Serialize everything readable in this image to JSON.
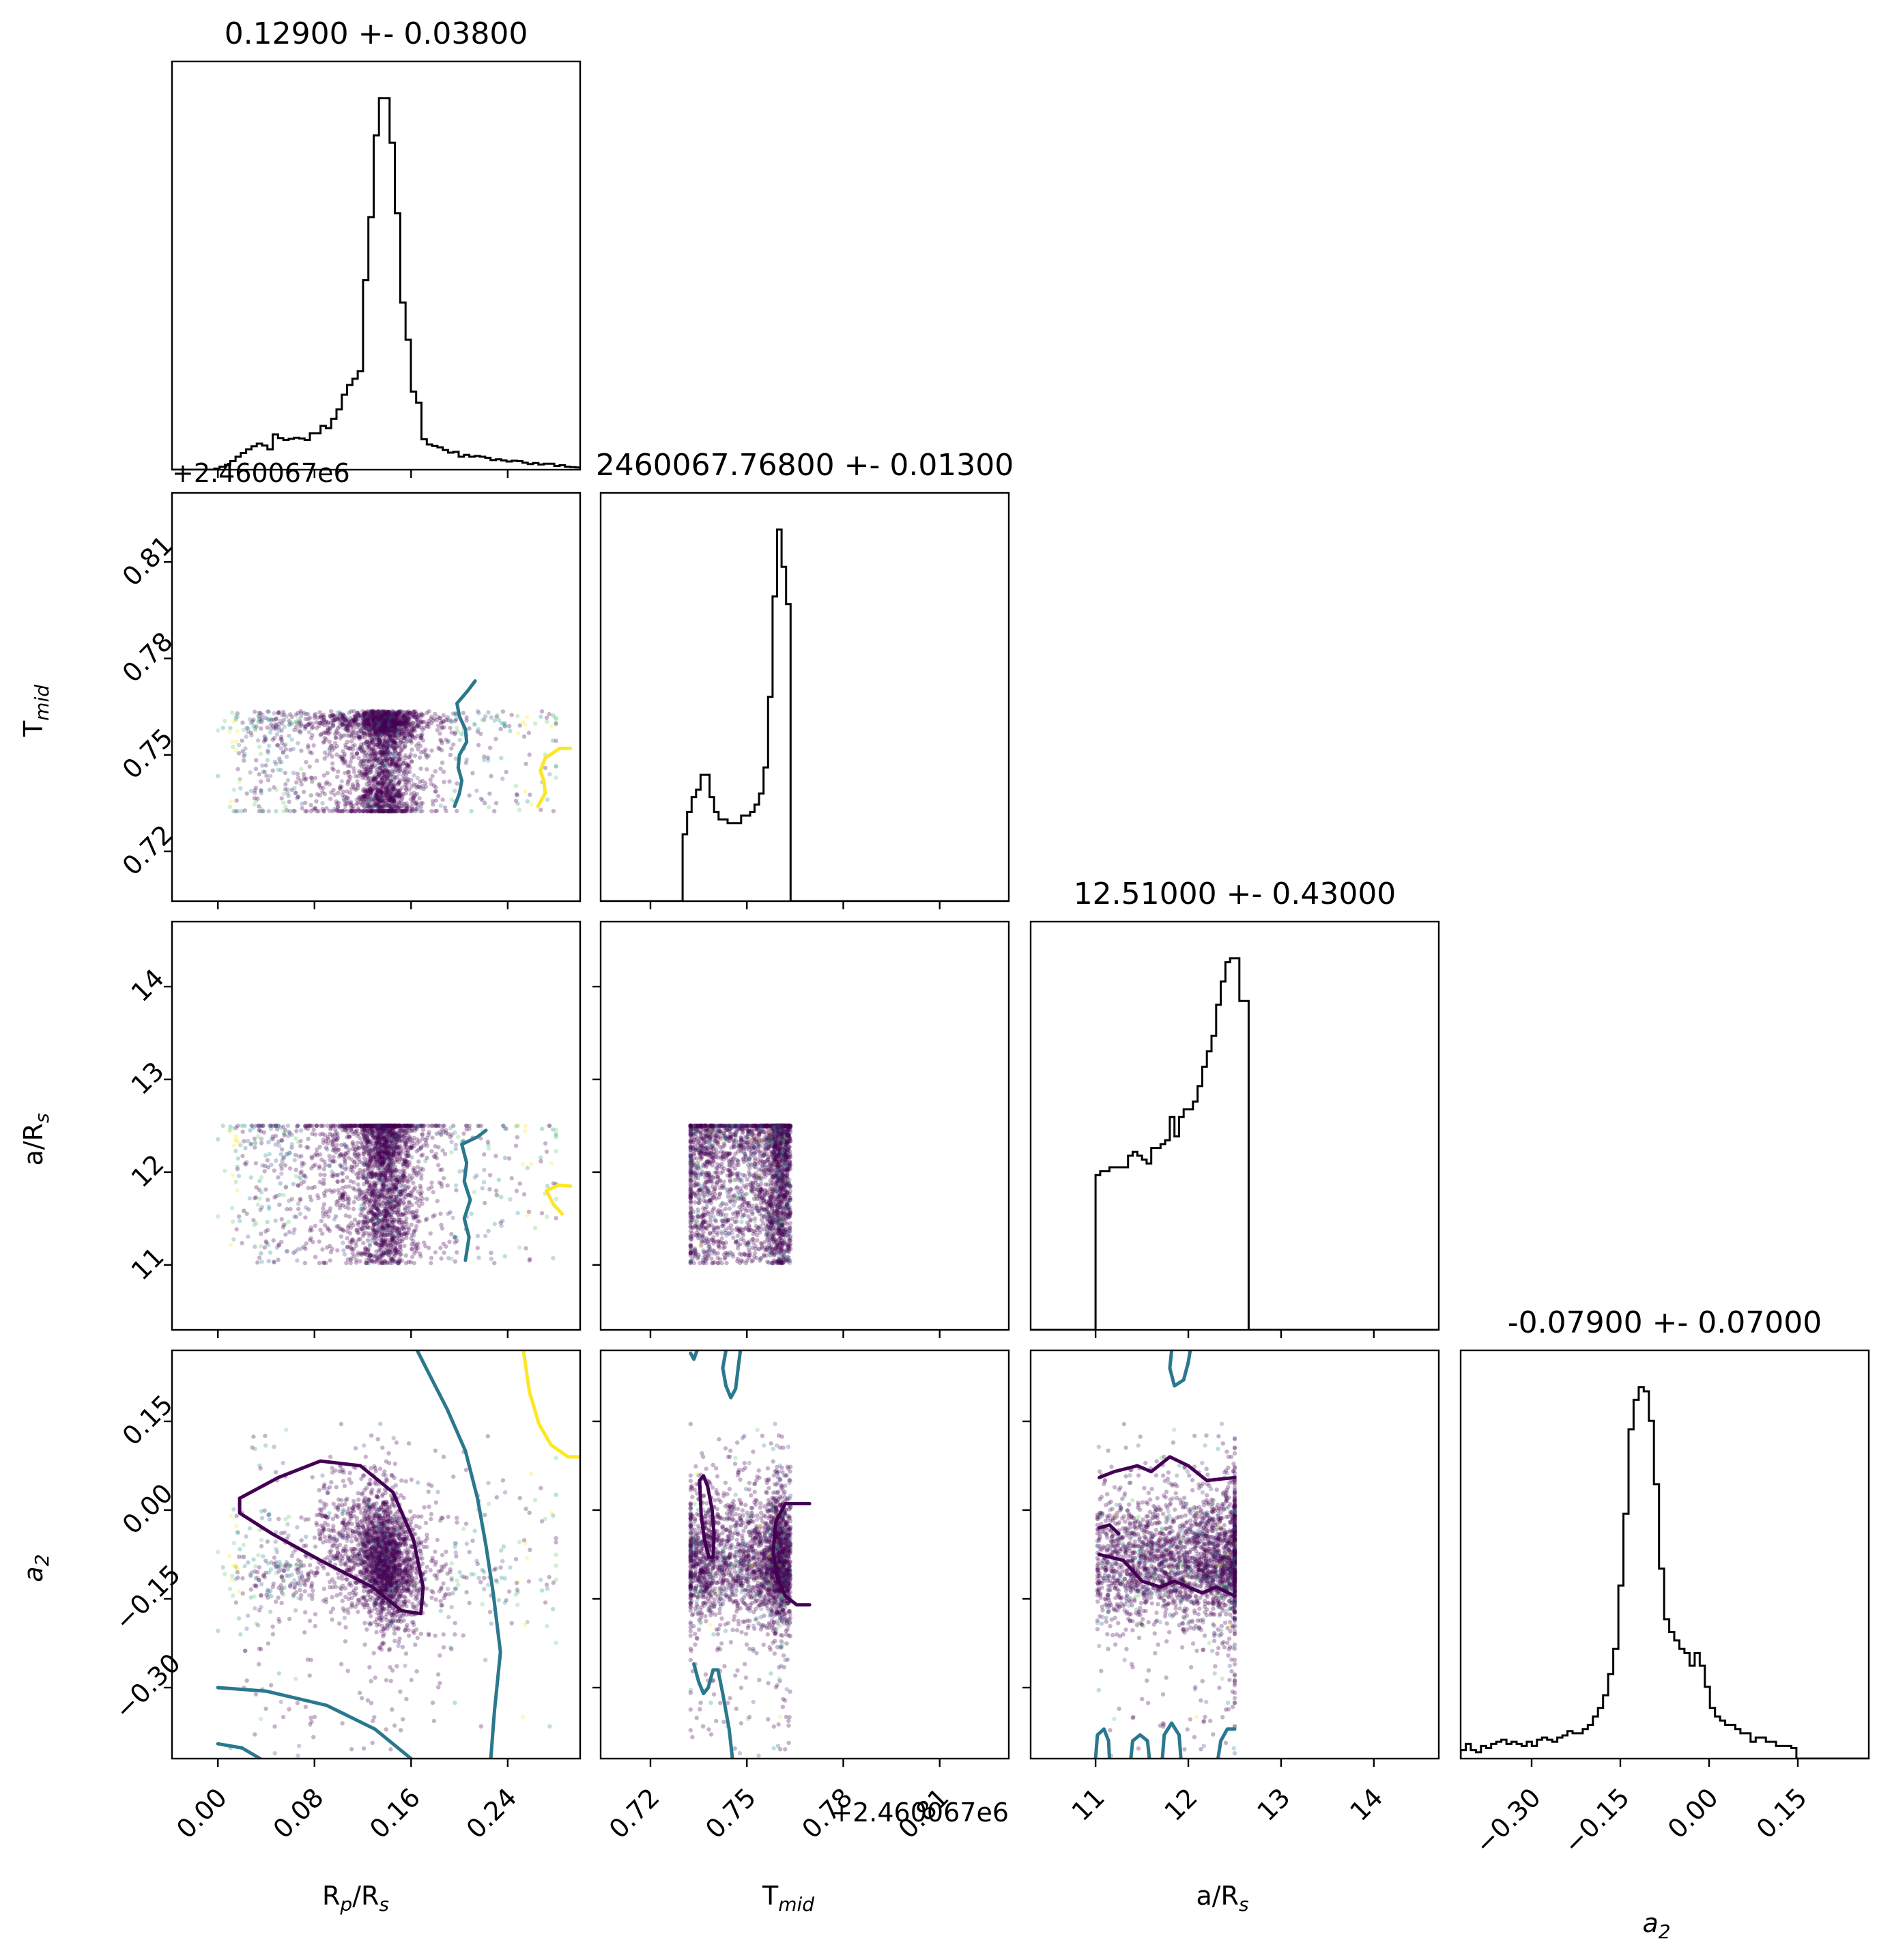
{
  "colors": {
    "hist_line": "#000000",
    "scatter": [
      "#440154",
      "#3b528b",
      "#21918c",
      "#5ec962",
      "#fde725"
    ],
    "contour_dark": "#440154",
    "contour_teal": "#2a788e",
    "contour_yellow": "#fde725"
  },
  "chart_data": {
    "type": "corner",
    "parameters": [
      {
        "key": "rp",
        "label": "R",
        "sub": "p",
        "label_suffix": "/R",
        "suffix_sub": "s",
        "range": [
          -0.038,
          0.3
        ],
        "ticks": [
          0.0,
          0.08,
          0.16,
          0.24
        ],
        "tick_labels": [
          "0.00",
          "0.08",
          "0.16",
          "0.24"
        ],
        "title": "0.12900 +- 0.03800",
        "offset_label": ""
      },
      {
        "key": "tmid",
        "label": "T",
        "sub": "mid",
        "label_suffix": "",
        "suffix_sub": "",
        "range": [
          0.7045,
          0.8315
        ],
        "ticks": [
          0.72,
          0.75,
          0.78,
          0.81
        ],
        "tick_labels": [
          "0.72",
          "0.75",
          "0.78",
          "0.81"
        ],
        "title": "2460067.76800 +- 0.01300",
        "offset_label": "+2.460067e6"
      },
      {
        "key": "ars",
        "label": "a/R",
        "sub": "s",
        "label_suffix": "",
        "suffix_sub": "",
        "range": [
          10.3,
          14.7
        ],
        "ticks": [
          11,
          12,
          13,
          14
        ],
        "tick_labels": [
          "11",
          "12",
          "13",
          "14"
        ],
        "title": "12.51000 +- 0.43000",
        "offset_label": ""
      },
      {
        "key": "a2",
        "label": "a",
        "sub": "2",
        "label_suffix": "",
        "suffix_sub": "",
        "italic": true,
        "range": [
          -0.42,
          0.27
        ],
        "ticks": [
          -0.3,
          -0.15,
          0.0,
          0.15
        ],
        "tick_labels": [
          "−0.30",
          "−0.15",
          "0.00",
          "0.15"
        ],
        "title": "-0.07900 +- 0.07000",
        "offset_label": ""
      }
    ],
    "histograms": {
      "rp": {
        "edges_start": -0.003,
        "bin_width": 0.0044,
        "counts": [
          0.3,
          0.8,
          1.3,
          2.3,
          3.5,
          4.5,
          5.5,
          6.3,
          7,
          6.5,
          5.5,
          9.5,
          8.5,
          8,
          8.3,
          8.6,
          8.4,
          8,
          9.8,
          9.8,
          11.8,
          11.2,
          13.7,
          16.2,
          20.2,
          22.8,
          24.5,
          26.5,
          51,
          68,
          90,
          100,
          100,
          88,
          69,
          45,
          35,
          21,
          18,
          8.2,
          6.8,
          6.4,
          6,
          5.3,
          4.6,
          4.8,
          3.5,
          4,
          3.5,
          3.7,
          3.5,
          3.2,
          2.6,
          2.8,
          2.5,
          2.2,
          2.4,
          2.3,
          1.9,
          1.5,
          1.8,
          1.4,
          1.6,
          1.6,
          1.0,
          1.2,
          0.8,
          0.7,
          0.6,
          0.3
        ]
      },
      "tmid": {
        "edges_start": 0.73,
        "bin_width": 0.0014,
        "counts": [
          18,
          24,
          28,
          30,
          34,
          34,
          28,
          24,
          22,
          22,
          21,
          21,
          21,
          23,
          23,
          24,
          26,
          29,
          36,
          55,
          82,
          100,
          90,
          80,
          0
        ]
      },
      "ars": {
        "edges_start": 11.0,
        "bin_width": 0.05,
        "counts": [
          40,
          41,
          41,
          42,
          42,
          42,
          42,
          45,
          46,
          45,
          44,
          43,
          47,
          47,
          48,
          49,
          55,
          50,
          55,
          57,
          57,
          59,
          63,
          68,
          72,
          76,
          84,
          90,
          95,
          96,
          96,
          85,
          85
        ]
      },
      "a2": {
        "edges_start": -0.42,
        "bin_width": 0.0086,
        "counts": [
          2,
          3.5,
          2,
          1.5,
          3,
          2.5,
          3.5,
          4,
          4.5,
          3.5,
          4,
          3.5,
          3,
          4,
          3,
          4.5,
          5,
          4.5,
          4,
          5,
          5.5,
          6.5,
          6,
          6,
          7,
          8,
          10,
          12,
          15,
          20,
          26,
          41,
          58,
          78,
          85,
          88,
          87,
          80,
          65,
          45,
          33,
          30,
          28,
          26,
          25,
          22,
          25,
          22,
          17,
          12,
          10,
          9,
          8,
          8,
          7,
          6,
          6,
          4,
          5,
          5,
          4,
          4,
          3,
          3,
          3,
          2.5
        ]
      }
    },
    "scatter_panels": [
      {
        "x": "rp",
        "y": "tmid"
      },
      {
        "x": "rp",
        "y": "ars"
      },
      {
        "x": "rp",
        "y": "a2"
      },
      {
        "x": "tmid",
        "y": "ars"
      },
      {
        "x": "tmid",
        "y": "a2"
      },
      {
        "x": "ars",
        "y": "a2"
      }
    ],
    "sample_bounds": {
      "rp": [
        0.0,
        0.28
      ],
      "tmid": [
        0.7325,
        0.7695
      ],
      "ars": [
        11.02,
        12.5
      ]
    },
    "contours": [
      {
        "x": "rp",
        "y": "tmid",
        "color": "contour_teal",
        "points": [
          [
            0.196,
            0.734
          ],
          [
            0.2,
            0.738
          ],
          [
            0.202,
            0.742
          ],
          [
            0.199,
            0.746
          ],
          [
            0.2,
            0.75
          ],
          [
            0.206,
            0.754
          ],
          [
            0.205,
            0.758
          ],
          [
            0.2,
            0.762
          ],
          [
            0.198,
            0.766
          ],
          [
            0.207,
            0.77
          ],
          [
            0.213,
            0.773
          ]
        ]
      },
      {
        "x": "rp",
        "y": "tmid",
        "color": "contour_yellow",
        "points": [
          [
            0.265,
            0.734
          ],
          [
            0.271,
            0.738
          ],
          [
            0.27,
            0.742
          ],
          [
            0.267,
            0.745
          ],
          [
            0.271,
            0.749
          ],
          [
            0.283,
            0.752
          ],
          [
            0.292,
            0.752
          ]
        ]
      },
      {
        "x": "rp",
        "y": "ars",
        "color": "contour_teal",
        "points": [
          [
            0.205,
            11.05
          ],
          [
            0.208,
            11.3
          ],
          [
            0.204,
            11.5
          ],
          [
            0.209,
            11.7
          ],
          [
            0.204,
            11.9
          ],
          [
            0.206,
            12.1
          ],
          [
            0.202,
            12.3
          ],
          [
            0.215,
            12.38
          ],
          [
            0.222,
            12.45
          ]
        ]
      },
      {
        "x": "rp",
        "y": "ars",
        "color": "contour_yellow",
        "points": [
          [
            0.285,
            11.55
          ],
          [
            0.278,
            11.65
          ],
          [
            0.272,
            11.8
          ],
          [
            0.282,
            11.86
          ],
          [
            0.292,
            11.85
          ]
        ]
      },
      {
        "x": "rp",
        "y": "a2",
        "color": "contour_dark",
        "points": [
          [
            0.018,
            0.02
          ],
          [
            0.05,
            0.055
          ],
          [
            0.085,
            0.083
          ],
          [
            0.118,
            0.075
          ],
          [
            0.145,
            0.03
          ],
          [
            0.162,
            -0.05
          ],
          [
            0.17,
            -0.13
          ],
          [
            0.168,
            -0.175
          ],
          [
            0.152,
            -0.17
          ],
          [
            0.128,
            -0.13
          ],
          [
            0.085,
            -0.085
          ],
          [
            0.045,
            -0.04
          ],
          [
            0.018,
            -0.005
          ],
          [
            0.018,
            0.02
          ]
        ]
      },
      {
        "x": "rp",
        "y": "a2",
        "color": "contour_teal",
        "points": [
          [
            0.165,
            0.27
          ],
          [
            0.175,
            0.23
          ],
          [
            0.19,
            0.17
          ],
          [
            0.205,
            0.1
          ],
          [
            0.215,
            0.02
          ],
          [
            0.222,
            -0.06
          ],
          [
            0.228,
            -0.14
          ],
          [
            0.234,
            -0.24
          ],
          [
            0.229,
            -0.34
          ],
          [
            0.226,
            -0.42
          ]
        ]
      },
      {
        "x": "rp",
        "y": "a2",
        "color": "contour_teal",
        "points": [
          [
            0.0,
            -0.3
          ],
          [
            0.04,
            -0.306
          ],
          [
            0.09,
            -0.33
          ],
          [
            0.13,
            -0.37
          ],
          [
            0.16,
            -0.42
          ]
        ]
      },
      {
        "x": "rp",
        "y": "a2",
        "color": "contour_yellow",
        "points": [
          [
            0.253,
            0.27
          ],
          [
            0.258,
            0.2
          ],
          [
            0.266,
            0.145
          ],
          [
            0.276,
            0.11
          ],
          [
            0.29,
            0.09
          ],
          [
            0.305,
            0.09
          ]
        ]
      },
      {
        "x": "rp",
        "y": "a2",
        "color": "contour_teal",
        "points": [
          [
            0.0,
            -0.395
          ],
          [
            0.02,
            -0.402
          ],
          [
            0.035,
            -0.42
          ]
        ]
      },
      {
        "x": "tmid",
        "y": "a2",
        "color": "contour_dark",
        "points": [
          [
            0.7353,
            0.05
          ],
          [
            0.7365,
            0.058
          ],
          [
            0.7378,
            0.04
          ],
          [
            0.7392,
            0.0
          ],
          [
            0.7398,
            -0.04
          ],
          [
            0.7395,
            -0.08
          ],
          [
            0.7382,
            -0.08
          ],
          [
            0.7368,
            -0.05
          ],
          [
            0.7358,
            -0.01
          ],
          [
            0.7353,
            0.05
          ]
        ]
      },
      {
        "x": "tmid",
        "y": "a2",
        "color": "contour_dark",
        "points": [
          [
            0.7695,
            0.011
          ],
          [
            0.762,
            0.011
          ],
          [
            0.759,
            -0.02
          ],
          [
            0.7582,
            -0.07
          ],
          [
            0.7595,
            -0.115
          ],
          [
            0.762,
            -0.145
          ],
          [
            0.7655,
            -0.16
          ],
          [
            0.7695,
            -0.16
          ]
        ]
      },
      {
        "x": "tmid",
        "y": "a2",
        "color": "contour_teal",
        "points": [
          [
            0.7435,
            0.27
          ],
          [
            0.7425,
            0.24
          ],
          [
            0.7435,
            0.21
          ],
          [
            0.745,
            0.19
          ],
          [
            0.7465,
            0.205
          ],
          [
            0.7475,
            0.25
          ],
          [
            0.748,
            0.27
          ]
        ]
      },
      {
        "x": "tmid",
        "y": "a2",
        "color": "contour_teal",
        "points": [
          [
            0.7325,
            0.265
          ],
          [
            0.7335,
            0.255
          ],
          [
            0.7345,
            0.27
          ]
        ]
      },
      {
        "x": "tmid",
        "y": "a2",
        "color": "contour_teal",
        "points": [
          [
            0.7335,
            -0.26
          ],
          [
            0.735,
            -0.29
          ],
          [
            0.7365,
            -0.31
          ],
          [
            0.738,
            -0.3
          ],
          [
            0.7395,
            -0.27
          ],
          [
            0.741,
            -0.27
          ],
          [
            0.7425,
            -0.31
          ],
          [
            0.7445,
            -0.37
          ],
          [
            0.7455,
            -0.42
          ]
        ]
      },
      {
        "x": "ars",
        "y": "a2",
        "color": "contour_dark",
        "points": [
          [
            11.04,
            0.055
          ],
          [
            11.2,
            0.065
          ],
          [
            11.45,
            0.075
          ],
          [
            11.6,
            0.065
          ],
          [
            11.8,
            0.09
          ],
          [
            12.0,
            0.075
          ],
          [
            12.2,
            0.05
          ],
          [
            12.5,
            0.055
          ]
        ]
      },
      {
        "x": "ars",
        "y": "a2",
        "color": "contour_dark",
        "points": [
          [
            11.04,
            -0.03
          ],
          [
            11.15,
            -0.025
          ],
          [
            11.25,
            -0.04
          ]
        ]
      },
      {
        "x": "ars",
        "y": "a2",
        "color": "contour_dark",
        "points": [
          [
            11.04,
            -0.075
          ],
          [
            11.3,
            -0.085
          ],
          [
            11.5,
            -0.12
          ],
          [
            11.7,
            -0.13
          ],
          [
            11.85,
            -0.12
          ],
          [
            12.0,
            -0.13
          ],
          [
            12.15,
            -0.14
          ],
          [
            12.3,
            -0.13
          ],
          [
            12.5,
            -0.145
          ]
        ]
      },
      {
        "x": "ars",
        "y": "a2",
        "color": "contour_teal",
        "points": [
          [
            11.82,
            0.27
          ],
          [
            11.8,
            0.24
          ],
          [
            11.85,
            0.21
          ],
          [
            11.95,
            0.22
          ],
          [
            12.0,
            0.25
          ],
          [
            12.02,
            0.27
          ]
        ]
      },
      {
        "x": "ars",
        "y": "a2",
        "color": "contour_teal",
        "points": [
          [
            11.0,
            -0.42
          ],
          [
            11.02,
            -0.38
          ],
          [
            11.09,
            -0.37
          ],
          [
            11.14,
            -0.39
          ],
          [
            11.15,
            -0.42
          ]
        ]
      },
      {
        "x": "ars",
        "y": "a2",
        "color": "contour_teal",
        "points": [
          [
            11.38,
            -0.42
          ],
          [
            11.4,
            -0.39
          ],
          [
            11.48,
            -0.38
          ],
          [
            11.56,
            -0.39
          ],
          [
            11.58,
            -0.42
          ]
        ]
      },
      {
        "x": "ars",
        "y": "a2",
        "color": "contour_teal",
        "points": [
          [
            11.72,
            -0.42
          ],
          [
            11.74,
            -0.38
          ],
          [
            11.82,
            -0.36
          ],
          [
            11.9,
            -0.38
          ],
          [
            11.92,
            -0.42
          ]
        ]
      },
      {
        "x": "ars",
        "y": "a2",
        "color": "contour_teal",
        "points": [
          [
            12.32,
            -0.42
          ],
          [
            12.35,
            -0.39
          ],
          [
            12.42,
            -0.37
          ],
          [
            12.5,
            -0.37
          ]
        ]
      }
    ]
  }
}
